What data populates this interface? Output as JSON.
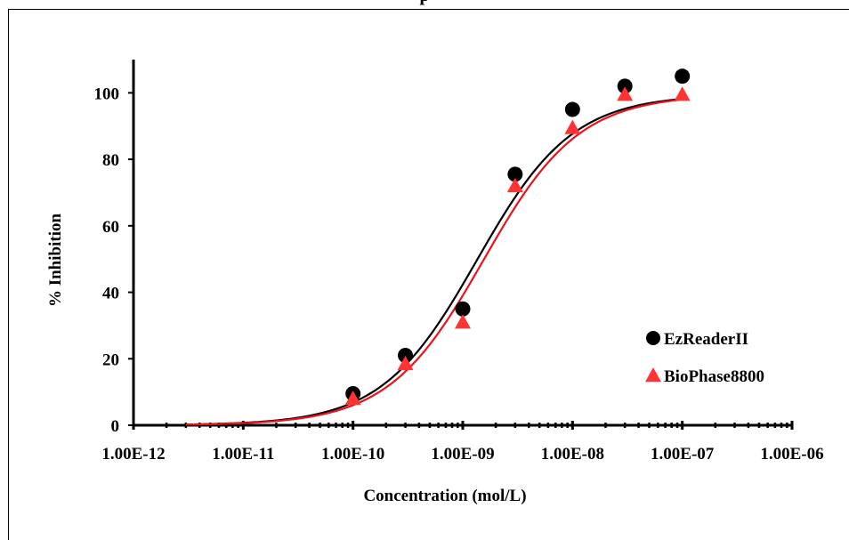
{
  "chart_data": {
    "type": "scatter",
    "title": "",
    "title_fragment": "p",
    "xlabel": "Concentration (mol/L)",
    "ylabel": "% Inhibition",
    "x_scale": "log",
    "xlim": [
      1e-12,
      1e-06
    ],
    "ylim": [
      0,
      110
    ],
    "x_ticks": [
      "1.00E-12",
      "1.00E-11",
      "1.00E-10",
      "1.00E-09",
      "1.00E-08",
      "1.00E-07",
      "1.00E-06"
    ],
    "y_ticks": [
      "0",
      "20",
      "40",
      "60",
      "80",
      "100"
    ],
    "grid": false,
    "legend_position": "right",
    "series": [
      {
        "name": "EzReaderII",
        "marker": "circle",
        "color": "#000000",
        "x": [
          1e-10,
          3e-10,
          1e-09,
          3e-09,
          1e-08,
          3e-08,
          1e-07
        ],
        "y": [
          9.5,
          21,
          35,
          75.5,
          95,
          102,
          105
        ],
        "fit": {
          "bottom": 0,
          "top": 99.5,
          "ec50": 1.35e-09,
          "hill": 1.0,
          "color": "#000000"
        }
      },
      {
        "name": "BioPhase8800",
        "marker": "triangle",
        "color": "#ff3333",
        "x": [
          1e-10,
          3e-10,
          1e-09,
          3e-09,
          1e-08,
          3e-08,
          1e-07
        ],
        "y": [
          8,
          18.5,
          31,
          72,
          89.5,
          99.5,
          99.5
        ],
        "fit": {
          "bottom": 0,
          "top": 99.5,
          "ec50": 1.55e-09,
          "hill": 1.0,
          "color": "#e8131c"
        }
      }
    ]
  }
}
